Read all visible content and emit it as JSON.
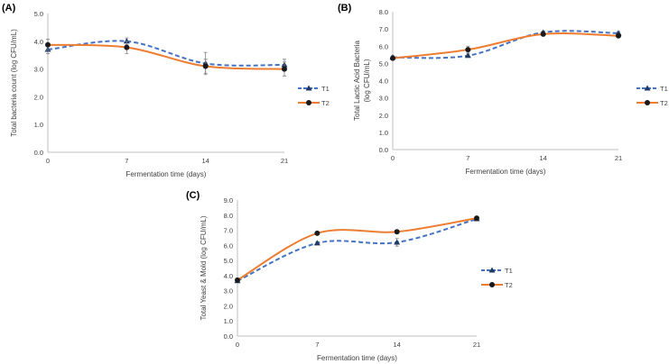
{
  "colors": {
    "T1": "#4472C4",
    "T2": "#ED7D31",
    "marker": "#1a1a1a",
    "axis": "#bfbfbf",
    "text": "#404040"
  },
  "chart_data": [
    {
      "type": "line",
      "panel_label": "(A)",
      "xlabel": "Fermentation time (days)",
      "ylabel": [
        "Total bacteria count (log CFU/mL)"
      ],
      "x": [
        0,
        7,
        14,
        21
      ],
      "x_ticks": [
        "0",
        "7",
        "14",
        "21"
      ],
      "ylim": [
        0,
        5
      ],
      "y_ticks": [
        "0.0",
        "1.0",
        "2.0",
        "3.0",
        "4.0",
        "5.0"
      ],
      "grid": false,
      "legend": "right",
      "smooth": true,
      "series": [
        {
          "name": "T1",
          "values": [
            3.7,
            4.0,
            3.2,
            3.15
          ],
          "errors": [
            0.15,
            0.12,
            0.4,
            0.2
          ],
          "marker": "triangle",
          "line": "dashed"
        },
        {
          "name": "T2",
          "values": [
            3.87,
            3.78,
            3.1,
            3.0
          ],
          "errors": [
            0.2,
            0.22,
            0.25,
            0.25
          ],
          "marker": "circle",
          "line": "solid"
        }
      ]
    },
    {
      "type": "line",
      "panel_label": "(B)",
      "xlabel": "Fermentation time (days)",
      "ylabel": [
        "Total Lactic Acid Bacteria",
        "(log CFU/mL)"
      ],
      "x": [
        0,
        7,
        14,
        21
      ],
      "x_ticks": [
        "0",
        "7",
        "14",
        "21"
      ],
      "ylim": [
        0,
        8
      ],
      "y_ticks": [
        "0.0",
        "1.0",
        "2.0",
        "3.0",
        "4.0",
        "5.0",
        "6.0",
        "7.0",
        "8.0"
      ],
      "grid": false,
      "legend": "right",
      "smooth": true,
      "series": [
        {
          "name": "T1",
          "values": [
            5.35,
            5.45,
            6.8,
            6.75
          ],
          "errors": [
            0.1,
            0.1,
            0.08,
            0.1
          ],
          "marker": "triangle",
          "line": "dashed"
        },
        {
          "name": "T2",
          "values": [
            5.3,
            5.8,
            6.7,
            6.6
          ],
          "errors": [
            0.08,
            0.2,
            0.1,
            0.1
          ],
          "marker": "circle",
          "line": "solid"
        }
      ]
    },
    {
      "type": "line",
      "panel_label": "(C)",
      "xlabel": "Fermentation time (days)",
      "ylabel": [
        "Total Yeast & Mold (log CFU/mL)"
      ],
      "x": [
        0,
        7,
        14,
        21
      ],
      "x_ticks": [
        "0",
        "7",
        "14",
        "21"
      ],
      "ylim": [
        0,
        9
      ],
      "y_ticks": [
        "0.0",
        "1.0",
        "2.0",
        "3.0",
        "4.0",
        "5.0",
        "6.0",
        "7.0",
        "8.0",
        "9.0"
      ],
      "grid": false,
      "legend": "right",
      "smooth": true,
      "series": [
        {
          "name": "T1",
          "values": [
            3.65,
            6.15,
            6.2,
            7.75
          ],
          "errors": [
            0.1,
            0.1,
            0.25,
            0.08
          ],
          "marker": "triangle",
          "line": "dashed"
        },
        {
          "name": "T2",
          "values": [
            3.7,
            6.8,
            6.9,
            7.8
          ],
          "errors": [
            0.08,
            0.08,
            0.08,
            0.08
          ],
          "marker": "circle",
          "line": "solid"
        }
      ]
    }
  ]
}
